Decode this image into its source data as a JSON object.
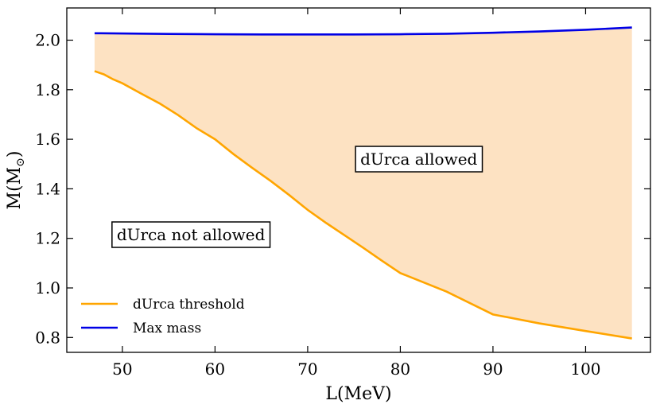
{
  "chart_data": {
    "type": "line",
    "title": "",
    "xlabel": "L(MeV)",
    "ylabel_main": "M(M",
    "ylabel_sub": "⊙",
    "ylabel_close": ")",
    "xlim": [
      44,
      107
    ],
    "ylim": [
      0.74,
      2.13
    ],
    "xticks": [
      50,
      60,
      70,
      80,
      90,
      100
    ],
    "yticks": [
      0.8,
      1.0,
      1.2,
      1.4,
      1.6,
      1.8,
      2.0
    ],
    "xtick_labels": [
      "50",
      "60",
      "70",
      "80",
      "90",
      "100"
    ],
    "ytick_labels": [
      "0.8",
      "1.0",
      "1.2",
      "1.4",
      "1.6",
      "1.8",
      "2.0"
    ],
    "series": [
      {
        "name": "dUrca threshold",
        "color": "#FFA500",
        "x": [
          47,
          48,
          49,
          50,
          52,
          54,
          56,
          58,
          60,
          62,
          64,
          66,
          68,
          70,
          72,
          74,
          76,
          78,
          80,
          85,
          90,
          95,
          100,
          105
        ],
        "y": [
          1.875,
          1.862,
          1.842,
          1.826,
          1.785,
          1.745,
          1.698,
          1.645,
          1.6,
          1.54,
          1.485,
          1.432,
          1.375,
          1.315,
          1.262,
          1.212,
          1.162,
          1.11,
          1.06,
          0.985,
          0.893,
          0.857,
          0.826,
          0.796
        ]
      },
      {
        "name": "Max mass",
        "color": "#0000E6",
        "x": [
          47,
          55,
          60,
          65,
          70,
          75,
          80,
          85,
          90,
          95,
          100,
          105
        ],
        "y": [
          2.028,
          2.025,
          2.024,
          2.023,
          2.023,
          2.023,
          2.024,
          2.026,
          2.03,
          2.035,
          2.042,
          2.051
        ]
      }
    ],
    "fill": {
      "between": [
        "dUrca threshold",
        "Max mass"
      ],
      "color": "#FDE2C2"
    },
    "annotations": [
      {
        "text": "dUrca allowed",
        "x": 82,
        "y": 1.52
      },
      {
        "text": "dUrca not allowed",
        "x": 57.4,
        "y": 1.215
      }
    ],
    "legend": {
      "position": "bottom-left",
      "entries": [
        "dUrca threshold",
        "Max mass"
      ]
    }
  }
}
